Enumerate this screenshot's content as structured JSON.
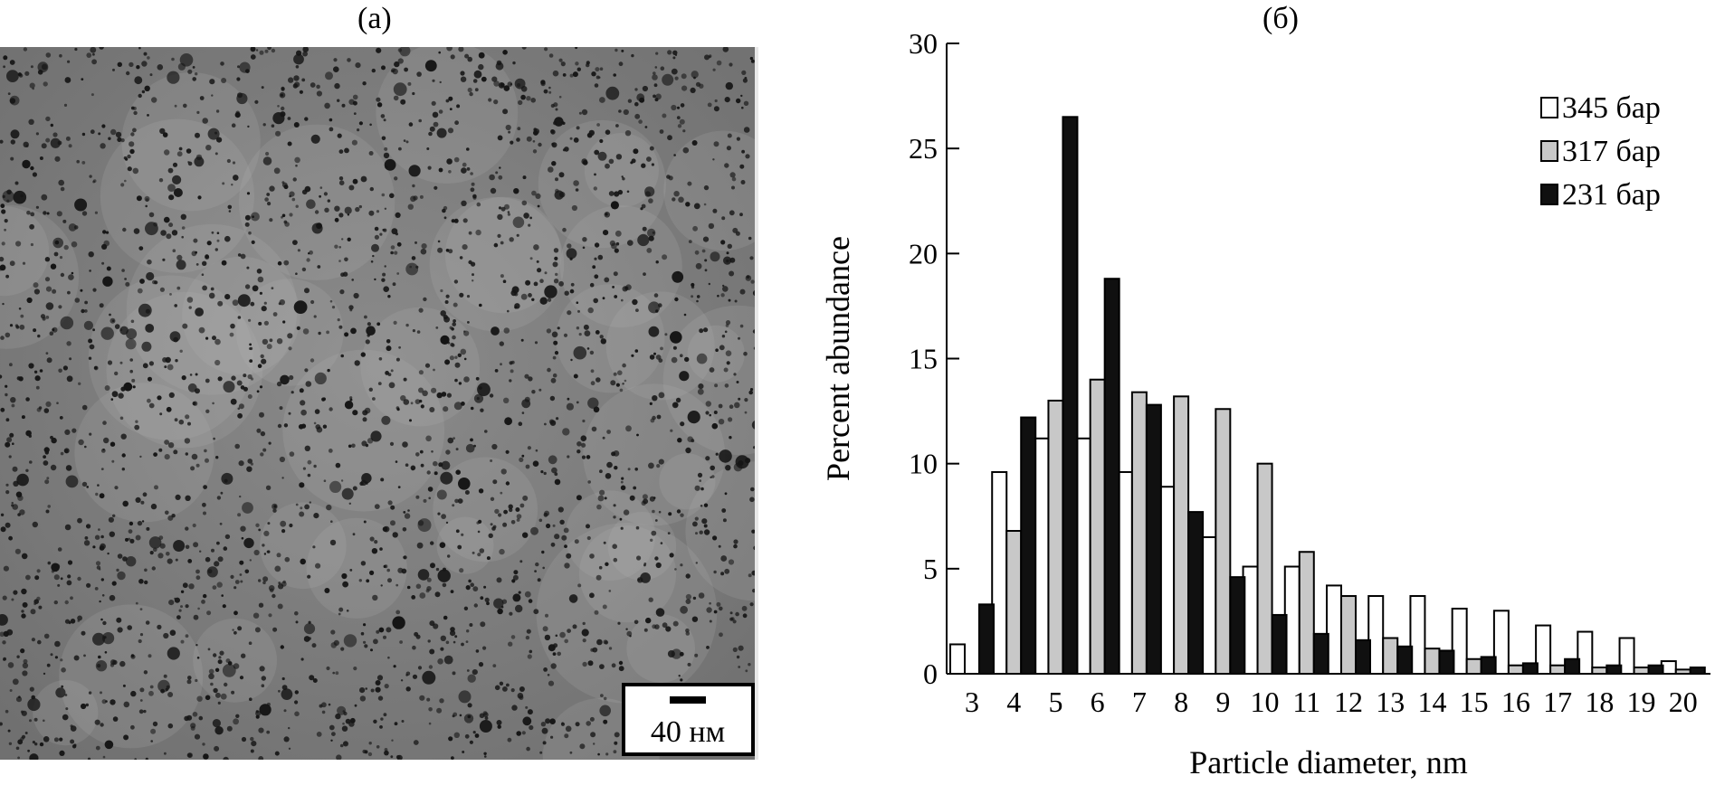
{
  "panels": {
    "a_label": "(a)",
    "b_label": "(б)"
  },
  "micrograph": {
    "scale_bar_label": "40 нм"
  },
  "colors": {
    "series_345": "#ffffff",
    "series_317": "#c8c8c8",
    "series_231": "#101010"
  },
  "chart_data": {
    "type": "bar",
    "title": "",
    "xlabel": "Particle diameter, nm",
    "ylabel": "Percent abundance",
    "ylim": [
      0,
      30
    ],
    "yticks": [
      0,
      5,
      10,
      15,
      20,
      25,
      30
    ],
    "categories": [
      "3",
      "4",
      "5",
      "6",
      "7",
      "8",
      "9",
      "10",
      "11",
      "12",
      "13",
      "14",
      "15",
      "16",
      "17",
      "18",
      "19",
      "20"
    ],
    "legend_position": "top-right",
    "series": [
      {
        "name": "345 бар",
        "values": [
          1.4,
          9.6,
          11.2,
          11.2,
          9.6,
          8.9,
          6.5,
          5.1,
          5.1,
          4.2,
          3.7,
          3.7,
          3.1,
          3.0,
          2.3,
          2.0,
          1.7,
          0.6
        ]
      },
      {
        "name": "317 бар",
        "values": [
          0.0,
          6.8,
          13.0,
          14.0,
          13.4,
          13.2,
          12.6,
          10.0,
          5.8,
          3.7,
          1.7,
          1.2,
          0.7,
          0.4,
          0.4,
          0.3,
          0.3,
          0.2
        ]
      },
      {
        "name": "231 бар",
        "values": [
          3.3,
          12.2,
          26.5,
          18.8,
          12.8,
          7.7,
          4.6,
          2.8,
          1.9,
          1.6,
          1.3,
          1.1,
          0.8,
          0.5,
          0.7,
          0.4,
          0.4,
          0.3
        ]
      }
    ]
  }
}
